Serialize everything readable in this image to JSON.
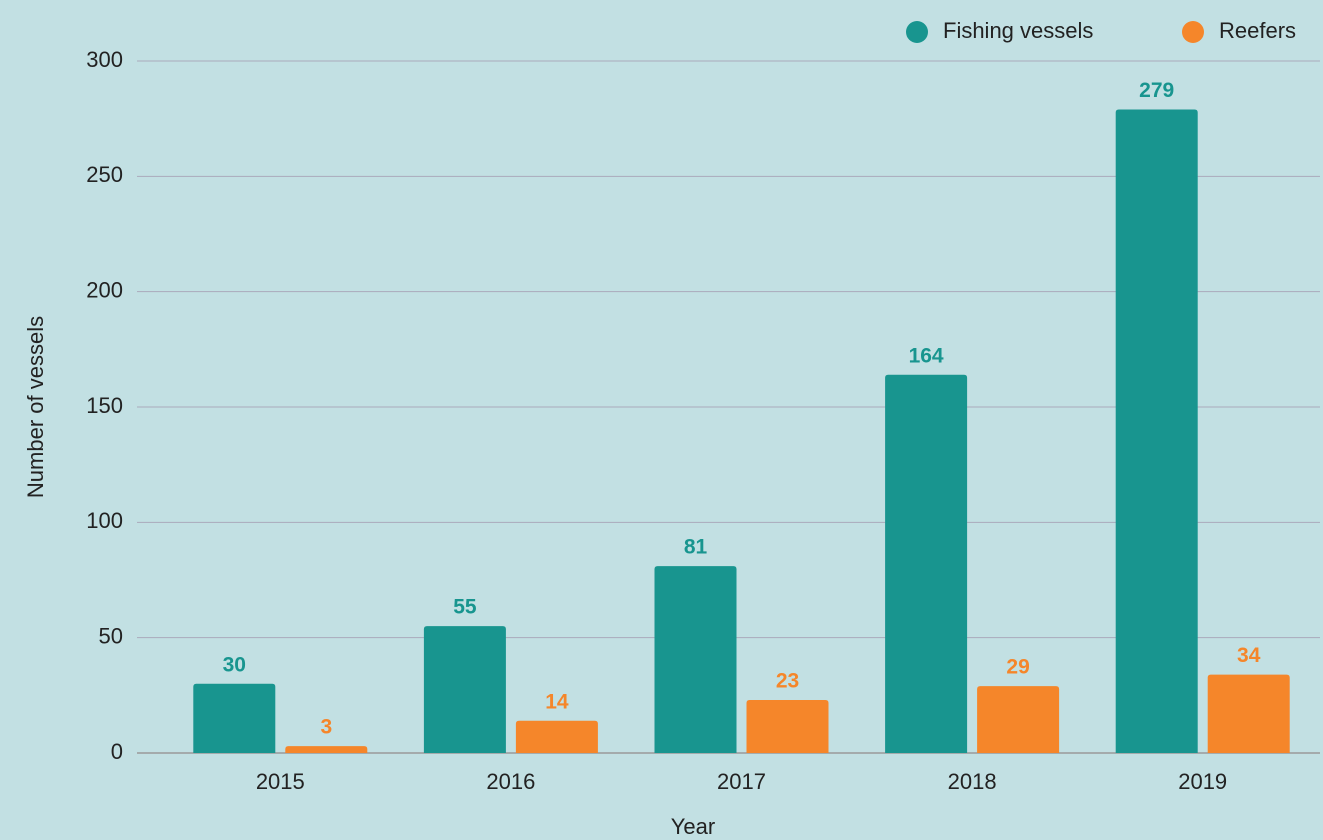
{
  "chart_data": {
    "type": "bar",
    "x_label": "Year",
    "y_label": "Number of vessels",
    "categories": [
      "2015",
      "2016",
      "2017",
      "2018",
      "2019"
    ],
    "series": [
      {
        "name": "Fishing vessels",
        "color": "#18958f",
        "values": [
          30,
          55,
          81,
          164,
          279
        ]
      },
      {
        "name": "Reefers",
        "color": "#f5862a",
        "values": [
          3,
          14,
          23,
          29,
          34
        ]
      }
    ],
    "ylim": [
      0,
      300
    ],
    "yticks": [
      0,
      50,
      100,
      150,
      200,
      250,
      300
    ],
    "grid": true,
    "legend": "top-right"
  }
}
